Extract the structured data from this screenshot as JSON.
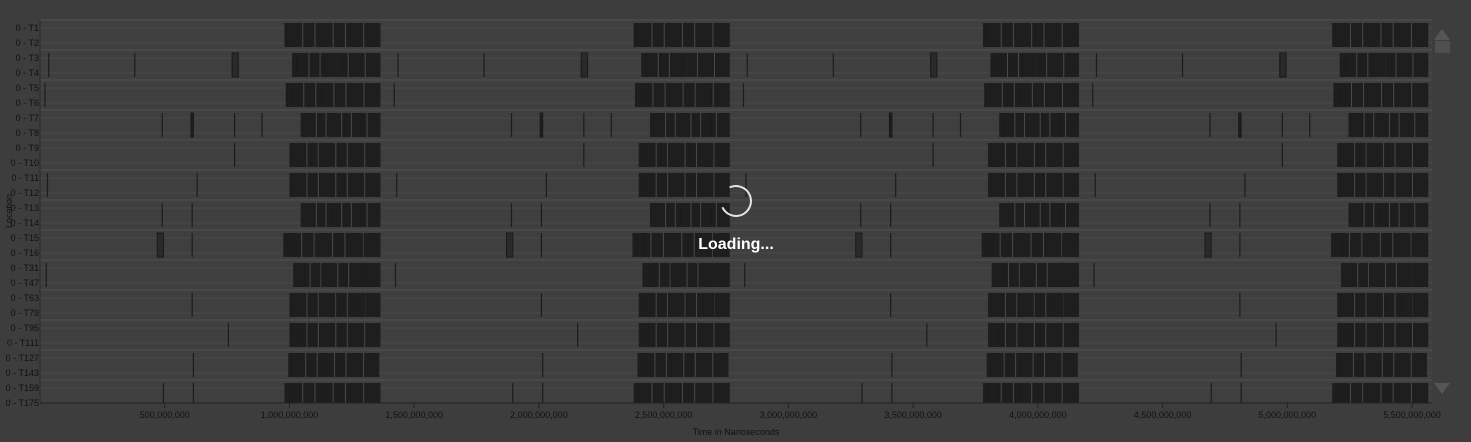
{
  "chart_data": {
    "type": "timeline",
    "title": "",
    "xlabel": "Time in Nanoseconds",
    "ylabel": "Location",
    "xlim": [
      0,
      5580000000
    ],
    "x_ticks": [
      {
        "value": 500000000,
        "label": "500,000,000"
      },
      {
        "value": 1000000000,
        "label": "1,000,000,000"
      },
      {
        "value": 1500000000,
        "label": "1,500,000,000"
      },
      {
        "value": 2000000000,
        "label": "2,000,000,000"
      },
      {
        "value": 2500000000,
        "label": "2,500,000,000"
      },
      {
        "value": 3000000000,
        "label": "3,000,000,000"
      },
      {
        "value": 3500000000,
        "label": "3,500,000,000"
      },
      {
        "value": 4000000000,
        "label": "4,000,000,000"
      },
      {
        "value": 4500000000,
        "label": "4,500,000,000"
      },
      {
        "value": 5000000000,
        "label": "5,000,000,000"
      },
      {
        "value": 5500000000,
        "label": "5,500,000,000"
      }
    ],
    "grid": true,
    "rows": [
      {
        "label": "0 - T1"
      },
      {
        "label": "0 - T2"
      },
      {
        "label": "0 - T3"
      },
      {
        "label": "0 - T4"
      },
      {
        "label": "0 - T5"
      },
      {
        "label": "0 - T6"
      },
      {
        "label": "0 - T7"
      },
      {
        "label": "0 - T8"
      },
      {
        "label": "0 - T9"
      },
      {
        "label": "0 - T10"
      },
      {
        "label": "0 - T11"
      },
      {
        "label": "0 - T12"
      },
      {
        "label": "0 - T13"
      },
      {
        "label": "0 - T14"
      },
      {
        "label": "0 - T15"
      },
      {
        "label": "0 - T16"
      },
      {
        "label": "0 - T31"
      },
      {
        "label": "0 - T47"
      },
      {
        "label": "0 - T63"
      },
      {
        "label": "0 - T79"
      },
      {
        "label": "0 - T95"
      },
      {
        "label": "0 - T111"
      },
      {
        "label": "0 - T127"
      },
      {
        "label": "0 - T143"
      },
      {
        "label": "0 - T159"
      },
      {
        "label": "0 - T175"
      }
    ],
    "groups": [
      {
        "rows": [
          0,
          1
        ],
        "blocks": [
          [
            980000000,
            1365000000
          ]
        ],
        "marks": [
          985000000,
          995000000
        ]
      },
      {
        "rows": [
          2,
          3
        ],
        "blocks": [
          [
            1010000000,
            1365000000
          ]
        ],
        "marks": [
          35000000,
          380000000,
          770000000,
          1030000000,
          1090000000,
          1140000000,
          1190000000
        ],
        "wide": [
          [
            770000000,
            795000000
          ]
        ]
      },
      {
        "rows": [
          4,
          5
        ],
        "blocks": [
          [
            985000000,
            1365000000
          ]
        ],
        "marks": [
          20000000,
          990000000,
          1010000000,
          1125000000,
          1290000000
        ]
      },
      {
        "rows": [
          6,
          7
        ],
        "blocks": [
          [
            1045000000,
            1365000000
          ]
        ],
        "marks": [
          490000000,
          610000000,
          780000000,
          890000000,
          1060000000,
          1100000000,
          1220000000,
          1290000000
        ],
        "wide": [
          [
            605000000,
            615000000
          ]
        ]
      },
      {
        "rows": [
          8,
          9
        ],
        "blocks": [
          [
            1000000000,
            1365000000
          ]
        ],
        "marks": [
          780000000,
          1010000000,
          1090000000,
          1120000000,
          1200000000
        ]
      },
      {
        "rows": [
          10,
          11
        ],
        "blocks": [
          [
            1000000000,
            1365000000
          ]
        ],
        "marks": [
          30000000,
          630000000,
          1010000000,
          1220000000
        ]
      },
      {
        "rows": [
          12,
          13
        ],
        "blocks": [
          [
            1045000000,
            1365000000
          ]
        ],
        "marks": [
          490000000,
          610000000,
          1100000000,
          1170000000,
          1290000000
        ]
      },
      {
        "rows": [
          14,
          15
        ],
        "blocks": [
          [
            975000000,
            1365000000
          ]
        ],
        "marks": [
          610000000,
          990000000,
          1020000000,
          1200000000,
          1230000000,
          1300000000
        ],
        "wide": [
          [
            470000000,
            495000000
          ]
        ]
      },
      {
        "rows": [
          16,
          17
        ],
        "blocks": [
          [
            1015000000,
            1365000000
          ]
        ],
        "marks": [
          25000000,
          1060000000,
          1130000000,
          1230000000,
          1305000000
        ]
      },
      {
        "rows": [
          18,
          19
        ],
        "blocks": [
          [
            1000000000,
            1365000000
          ]
        ],
        "marks": [
          610000000,
          1010000000,
          1120000000,
          1190000000,
          1260000000,
          1300000000
        ]
      },
      {
        "rows": [
          20,
          21
        ],
        "blocks": [
          [
            1000000000,
            1365000000
          ]
        ],
        "marks": [
          755000000,
          1010000000,
          1040000000
        ]
      },
      {
        "rows": [
          22,
          23
        ],
        "blocks": [
          [
            995000000,
            1360000000
          ]
        ],
        "marks": [
          615000000,
          1010000000,
          1130000000,
          1210000000
        ]
      },
      {
        "rows": [
          24,
          25
        ],
        "blocks": [
          [
            980000000,
            1365000000
          ]
        ],
        "marks": [
          495000000,
          615000000,
          1000000000,
          1040000000,
          1130000000,
          1200000000
        ]
      }
    ],
    "cycles": [
      0,
      1400000000,
      2800000000,
      4200000000
    ],
    "cycle_limit": 5580000000
  },
  "status": {
    "loading_text": "Loading..."
  },
  "scrollbar": {
    "up_label": "scroll-up-icon",
    "down_label": "scroll-down-icon"
  }
}
